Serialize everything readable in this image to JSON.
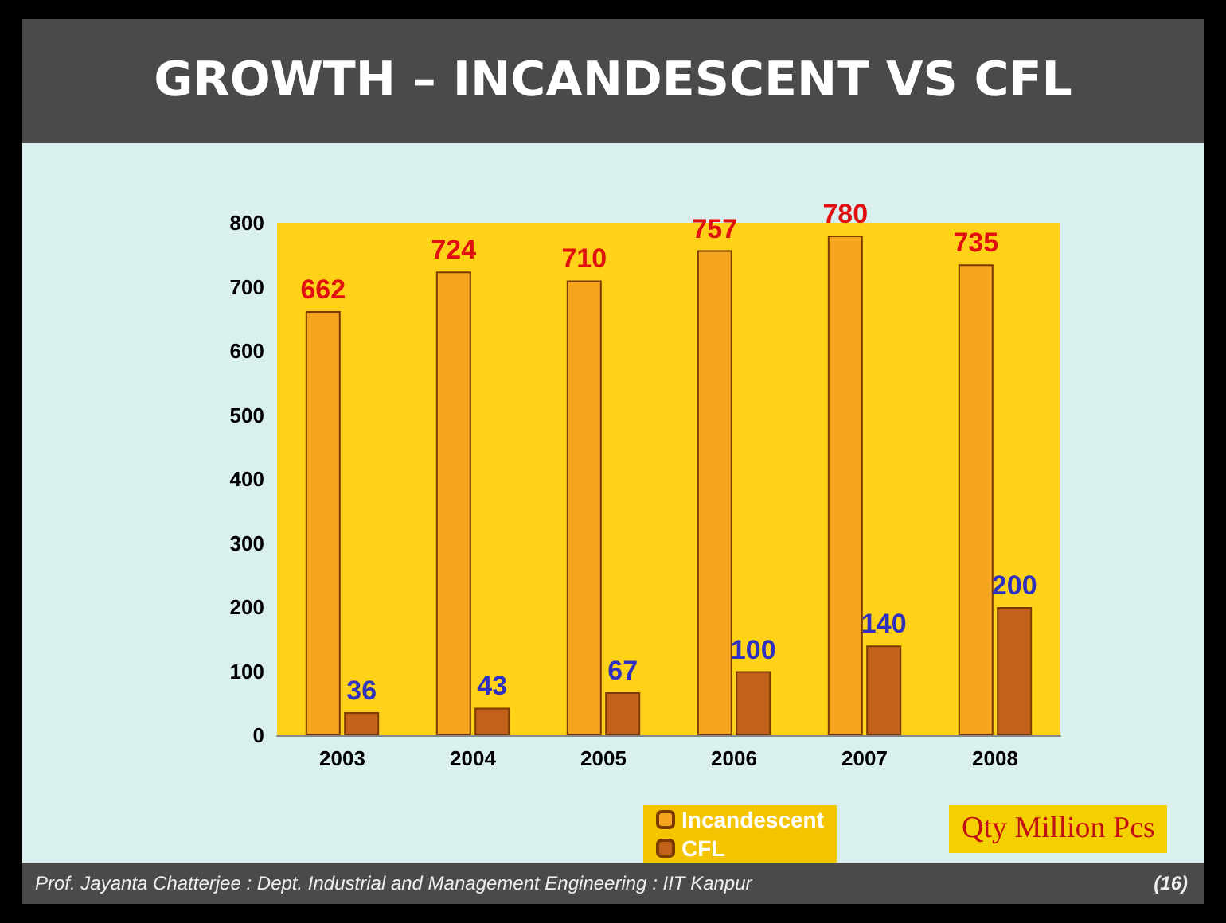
{
  "chart_data": {
    "type": "bar",
    "title": "GROWTH – INCANDESCENT VS CFL",
    "categories": [
      "2003",
      "2004",
      "2005",
      "2006",
      "2007",
      "2008"
    ],
    "series": [
      {
        "name": "Incandescent",
        "color": "#f5a51f",
        "values": [
          662,
          724,
          710,
          757,
          780,
          735
        ]
      },
      {
        "name": "CFL",
        "color": "#c2611a",
        "values": [
          36,
          43,
          67,
          100,
          140,
          200
        ]
      }
    ],
    "ylim": [
      0,
      800
    ],
    "yticks": [
      0,
      100,
      200,
      300,
      400,
      500,
      600,
      700,
      800
    ],
    "grid": false,
    "legend": "bottom",
    "data_labels": true,
    "annotations": [
      "Qty Million Pcs",
      "Prof. Jayanta Chatterjee : Dept. Industrial and Management Engineering : IIT Kanpur",
      "(16)"
    ]
  }
}
